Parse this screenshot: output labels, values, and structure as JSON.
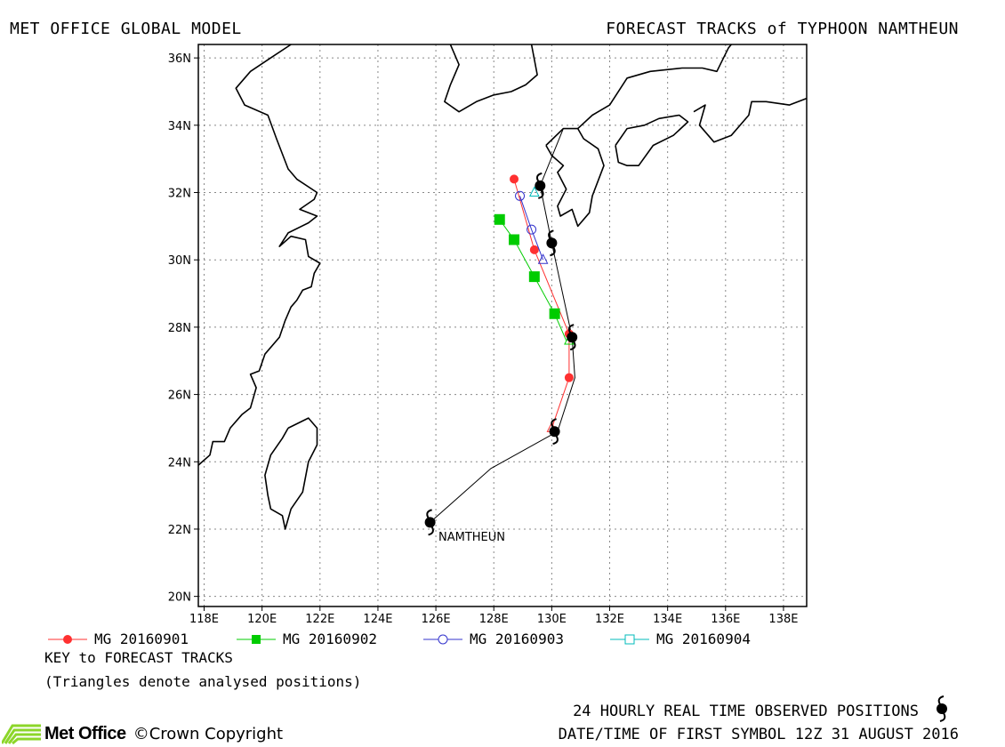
{
  "header": {
    "left": "MET OFFICE GLOBAL MODEL",
    "right": "FORECAST TRACKS of TYPHOON NAMTHEUN"
  },
  "map": {
    "lon_range": [
      117.8,
      138.8
    ],
    "lat_range": [
      19.7,
      36.4
    ],
    "lon_ticks": [
      {
        "v": 118,
        "label": "118E"
      },
      {
        "v": 120,
        "label": "120E"
      },
      {
        "v": 122,
        "label": "122E"
      },
      {
        "v": 124,
        "label": "124E"
      },
      {
        "v": 126,
        "label": "126E"
      },
      {
        "v": 128,
        "label": "128E"
      },
      {
        "v": 130,
        "label": "130E"
      },
      {
        "v": 132,
        "label": "132E"
      },
      {
        "v": 134,
        "label": "134E"
      },
      {
        "v": 136,
        "label": "136E"
      },
      {
        "v": 138,
        "label": "138E"
      }
    ],
    "lat_ticks": [
      {
        "v": 20,
        "label": "20N"
      },
      {
        "v": 22,
        "label": "22N"
      },
      {
        "v": 24,
        "label": "24N"
      },
      {
        "v": 26,
        "label": "26N"
      },
      {
        "v": 28,
        "label": "28N"
      },
      {
        "v": 30,
        "label": "30N"
      },
      {
        "v": 32,
        "label": "32N"
      },
      {
        "v": 34,
        "label": "34N"
      },
      {
        "v": 36,
        "label": "36N"
      }
    ],
    "storm_label": "NAMTHEUN",
    "coastlines": [
      [
        [
          117.8,
          23.9
        ],
        [
          118.2,
          24.2
        ],
        [
          118.3,
          24.6
        ],
        [
          118.7,
          24.6
        ],
        [
          118.9,
          25.0
        ],
        [
          119.3,
          25.4
        ],
        [
          119.6,
          25.6
        ],
        [
          119.8,
          26.2
        ],
        [
          119.6,
          26.6
        ],
        [
          119.9,
          26.7
        ],
        [
          120.1,
          27.2
        ],
        [
          120.6,
          27.7
        ],
        [
          120.8,
          28.2
        ],
        [
          121.0,
          28.6
        ],
        [
          121.2,
          28.8
        ],
        [
          121.4,
          29.1
        ],
        [
          121.7,
          29.2
        ],
        [
          121.8,
          29.6
        ],
        [
          122.0,
          29.9
        ],
        [
          121.6,
          30.1
        ],
        [
          121.5,
          30.6
        ],
        [
          121.0,
          30.7
        ],
        [
          120.6,
          30.4
        ],
        [
          120.9,
          30.8
        ],
        [
          121.6,
          31.1
        ],
        [
          121.9,
          31.3
        ],
        [
          121.3,
          31.5
        ],
        [
          121.8,
          31.8
        ],
        [
          121.9,
          32.0
        ],
        [
          121.2,
          32.4
        ],
        [
          120.9,
          32.7
        ],
        [
          120.5,
          33.6
        ],
        [
          120.2,
          34.3
        ],
        [
          119.4,
          34.6
        ],
        [
          119.1,
          35.1
        ],
        [
          119.6,
          35.6
        ],
        [
          120.3,
          36.0
        ],
        [
          121.0,
          36.4
        ]
      ],
      [
        [
          120.9,
          25.0
        ],
        [
          121.6,
          25.3
        ],
        [
          121.9,
          25.0
        ],
        [
          121.9,
          24.5
        ],
        [
          121.6,
          24.0
        ],
        [
          121.4,
          23.1
        ],
        [
          121.0,
          22.6
        ],
        [
          120.8,
          22.0
        ],
        [
          120.7,
          22.4
        ],
        [
          120.3,
          22.6
        ],
        [
          120.2,
          23.0
        ],
        [
          120.1,
          23.6
        ],
        [
          120.3,
          24.2
        ],
        [
          120.7,
          24.7
        ],
        [
          120.9,
          25.0
        ]
      ],
      [
        [
          126.5,
          36.4
        ],
        [
          126.8,
          35.8
        ],
        [
          126.5,
          35.2
        ],
        [
          126.3,
          34.7
        ],
        [
          126.8,
          34.4
        ],
        [
          127.4,
          34.7
        ],
        [
          128.0,
          34.9
        ],
        [
          128.6,
          35.0
        ],
        [
          129.1,
          35.2
        ],
        [
          129.5,
          35.5
        ],
        [
          129.3,
          36.4
        ]
      ],
      [
        [
          129.8,
          33.4
        ],
        [
          130.4,
          33.9
        ],
        [
          130.9,
          33.9
        ],
        [
          131.1,
          33.6
        ],
        [
          131.6,
          33.3
        ],
        [
          131.8,
          32.8
        ],
        [
          131.4,
          31.9
        ],
        [
          131.3,
          31.4
        ],
        [
          130.9,
          31.0
        ],
        [
          130.7,
          31.5
        ],
        [
          130.3,
          31.3
        ],
        [
          130.2,
          31.6
        ],
        [
          130.5,
          32.1
        ],
        [
          130.2,
          32.6
        ],
        [
          130.4,
          32.8
        ],
        [
          130.0,
          33.1
        ],
        [
          129.8,
          33.4
        ]
      ],
      [
        [
          130.9,
          33.9
        ],
        [
          131.4,
          34.3
        ],
        [
          132.0,
          34.6
        ],
        [
          132.6,
          35.4
        ],
        [
          133.4,
          35.6
        ],
        [
          134.5,
          35.7
        ],
        [
          135.2,
          35.7
        ],
        [
          135.7,
          35.6
        ],
        [
          136.1,
          36.3
        ],
        [
          136.2,
          36.4
        ]
      ],
      [
        [
          132.2,
          33.4
        ],
        [
          132.6,
          33.9
        ],
        [
          133.2,
          34.0
        ],
        [
          133.7,
          34.2
        ],
        [
          134.4,
          34.3
        ],
        [
          134.7,
          34.1
        ],
        [
          134.2,
          33.7
        ],
        [
          133.5,
          33.4
        ],
        [
          133.0,
          32.8
        ],
        [
          132.6,
          32.8
        ],
        [
          132.3,
          32.9
        ],
        [
          132.2,
          33.4
        ]
      ],
      [
        [
          134.9,
          34.4
        ],
        [
          135.3,
          34.6
        ],
        [
          135.1,
          34.0
        ],
        [
          135.6,
          33.5
        ],
        [
          136.2,
          33.7
        ],
        [
          136.8,
          34.3
        ],
        [
          136.9,
          34.7
        ],
        [
          137.4,
          34.7
        ],
        [
          138.2,
          34.6
        ],
        [
          138.8,
          34.8
        ]
      ]
    ]
  },
  "observed_track": [
    [
      125.8,
      22.2
    ],
    [
      127.9,
      23.8
    ],
    [
      130.2,
      24.9
    ],
    [
      130.8,
      26.5
    ],
    [
      130.7,
      27.7
    ],
    [
      130.0,
      30.5
    ],
    [
      129.6,
      32.2
    ],
    [
      130.4,
      33.9
    ]
  ],
  "observed_symbols": [
    [
      125.8,
      22.2
    ],
    [
      130.1,
      24.9
    ],
    [
      130.7,
      27.7
    ],
    [
      130.0,
      30.5
    ],
    [
      129.6,
      32.2
    ]
  ],
  "analysed_positions": [
    [
      130.0,
      25.0
    ],
    [
      130.6,
      27.6
    ],
    [
      129.7,
      30.0
    ],
    [
      129.4,
      32.0
    ]
  ],
  "tracks": [
    {
      "name": "MG 20160901",
      "color": "#ff3030",
      "marker": "filled-circle",
      "points": [
        [
          130.0,
          25.0
        ],
        [
          130.6,
          26.5
        ],
        [
          130.6,
          27.8
        ],
        [
          129.4,
          30.3
        ],
        [
          128.7,
          32.4
        ]
      ]
    },
    {
      "name": "MG 20160902",
      "color": "#00cc00",
      "marker": "filled-square",
      "points": [
        [
          130.5,
          27.6
        ],
        [
          130.1,
          28.4
        ],
        [
          129.4,
          29.5
        ],
        [
          128.7,
          30.6
        ],
        [
          128.2,
          31.2
        ]
      ]
    },
    {
      "name": "MG 20160903",
      "color": "#3333cc",
      "marker": "open-circle",
      "points": [
        [
          129.7,
          30.0
        ],
        [
          129.3,
          30.9
        ],
        [
          128.9,
          31.9
        ]
      ]
    },
    {
      "name": "MG 20160904",
      "color": "#00bbbb",
      "marker": "open-square",
      "points": [
        [
          129.4,
          32.0
        ]
      ]
    }
  ],
  "notes": {
    "key": "KEY to FORECAST TRACKS",
    "triangles": "(Triangles denote analysed positions)"
  },
  "footer": {
    "observed": "24 HOURLY REAL TIME OBSERVED POSITIONS",
    "datetime": "DATE/TIME OF FIRST SYMBOL 12Z 31 AUGUST 2016",
    "logo": "Met Office",
    "copyright": "©Crown Copyright"
  }
}
